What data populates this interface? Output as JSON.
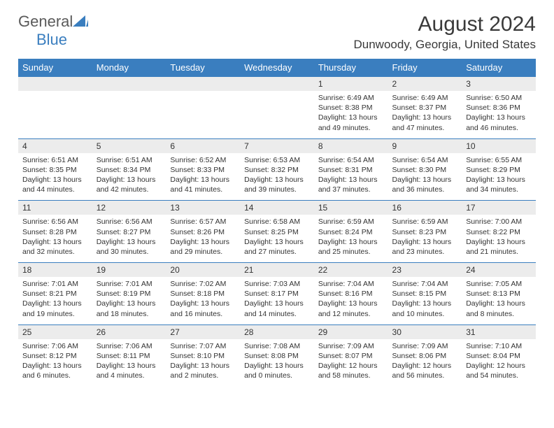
{
  "logo": {
    "text1": "General",
    "text2": "Blue"
  },
  "title": "August 2024",
  "location": "Dunwoody, Georgia, United States",
  "colors": {
    "header_bg": "#3a7ebf",
    "header_text": "#ffffff",
    "daynum_bg": "#ececec",
    "border": "#3a7ebf",
    "body_text": "#333333",
    "page_bg": "#ffffff"
  },
  "day_headers": [
    "Sunday",
    "Monday",
    "Tuesday",
    "Wednesday",
    "Thursday",
    "Friday",
    "Saturday"
  ],
  "weeks": [
    {
      "nums": [
        "",
        "",
        "",
        "",
        "1",
        "2",
        "3"
      ],
      "cells": [
        null,
        null,
        null,
        null,
        {
          "sunrise": "6:49 AM",
          "sunset": "8:38 PM",
          "daylight": "13 hours and 49 minutes."
        },
        {
          "sunrise": "6:49 AM",
          "sunset": "8:37 PM",
          "daylight": "13 hours and 47 minutes."
        },
        {
          "sunrise": "6:50 AM",
          "sunset": "8:36 PM",
          "daylight": "13 hours and 46 minutes."
        }
      ]
    },
    {
      "nums": [
        "4",
        "5",
        "6",
        "7",
        "8",
        "9",
        "10"
      ],
      "cells": [
        {
          "sunrise": "6:51 AM",
          "sunset": "8:35 PM",
          "daylight": "13 hours and 44 minutes."
        },
        {
          "sunrise": "6:51 AM",
          "sunset": "8:34 PM",
          "daylight": "13 hours and 42 minutes."
        },
        {
          "sunrise": "6:52 AM",
          "sunset": "8:33 PM",
          "daylight": "13 hours and 41 minutes."
        },
        {
          "sunrise": "6:53 AM",
          "sunset": "8:32 PM",
          "daylight": "13 hours and 39 minutes."
        },
        {
          "sunrise": "6:54 AM",
          "sunset": "8:31 PM",
          "daylight": "13 hours and 37 minutes."
        },
        {
          "sunrise": "6:54 AM",
          "sunset": "8:30 PM",
          "daylight": "13 hours and 36 minutes."
        },
        {
          "sunrise": "6:55 AM",
          "sunset": "8:29 PM",
          "daylight": "13 hours and 34 minutes."
        }
      ]
    },
    {
      "nums": [
        "11",
        "12",
        "13",
        "14",
        "15",
        "16",
        "17"
      ],
      "cells": [
        {
          "sunrise": "6:56 AM",
          "sunset": "8:28 PM",
          "daylight": "13 hours and 32 minutes."
        },
        {
          "sunrise": "6:56 AM",
          "sunset": "8:27 PM",
          "daylight": "13 hours and 30 minutes."
        },
        {
          "sunrise": "6:57 AM",
          "sunset": "8:26 PM",
          "daylight": "13 hours and 29 minutes."
        },
        {
          "sunrise": "6:58 AM",
          "sunset": "8:25 PM",
          "daylight": "13 hours and 27 minutes."
        },
        {
          "sunrise": "6:59 AM",
          "sunset": "8:24 PM",
          "daylight": "13 hours and 25 minutes."
        },
        {
          "sunrise": "6:59 AM",
          "sunset": "8:23 PM",
          "daylight": "13 hours and 23 minutes."
        },
        {
          "sunrise": "7:00 AM",
          "sunset": "8:22 PM",
          "daylight": "13 hours and 21 minutes."
        }
      ]
    },
    {
      "nums": [
        "18",
        "19",
        "20",
        "21",
        "22",
        "23",
        "24"
      ],
      "cells": [
        {
          "sunrise": "7:01 AM",
          "sunset": "8:21 PM",
          "daylight": "13 hours and 19 minutes."
        },
        {
          "sunrise": "7:01 AM",
          "sunset": "8:19 PM",
          "daylight": "13 hours and 18 minutes."
        },
        {
          "sunrise": "7:02 AM",
          "sunset": "8:18 PM",
          "daylight": "13 hours and 16 minutes."
        },
        {
          "sunrise": "7:03 AM",
          "sunset": "8:17 PM",
          "daylight": "13 hours and 14 minutes."
        },
        {
          "sunrise": "7:04 AM",
          "sunset": "8:16 PM",
          "daylight": "13 hours and 12 minutes."
        },
        {
          "sunrise": "7:04 AM",
          "sunset": "8:15 PM",
          "daylight": "13 hours and 10 minutes."
        },
        {
          "sunrise": "7:05 AM",
          "sunset": "8:13 PM",
          "daylight": "13 hours and 8 minutes."
        }
      ]
    },
    {
      "nums": [
        "25",
        "26",
        "27",
        "28",
        "29",
        "30",
        "31"
      ],
      "cells": [
        {
          "sunrise": "7:06 AM",
          "sunset": "8:12 PM",
          "daylight": "13 hours and 6 minutes."
        },
        {
          "sunrise": "7:06 AM",
          "sunset": "8:11 PM",
          "daylight": "13 hours and 4 minutes."
        },
        {
          "sunrise": "7:07 AM",
          "sunset": "8:10 PM",
          "daylight": "13 hours and 2 minutes."
        },
        {
          "sunrise": "7:08 AM",
          "sunset": "8:08 PM",
          "daylight": "13 hours and 0 minutes."
        },
        {
          "sunrise": "7:09 AM",
          "sunset": "8:07 PM",
          "daylight": "12 hours and 58 minutes."
        },
        {
          "sunrise": "7:09 AM",
          "sunset": "8:06 PM",
          "daylight": "12 hours and 56 minutes."
        },
        {
          "sunrise": "7:10 AM",
          "sunset": "8:04 PM",
          "daylight": "12 hours and 54 minutes."
        }
      ]
    }
  ]
}
